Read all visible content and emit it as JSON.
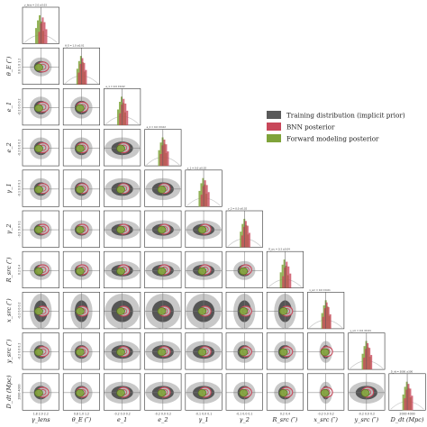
{
  "chart_data": {
    "type": "corner",
    "parameters": [
      "γ_lens",
      "θ_E (″)",
      "e_1",
      "e_2",
      "γ_1",
      "γ_2",
      "R_src (″)",
      "x_src (″)",
      "y_src (″)",
      "D_dt (Mpc)"
    ],
    "legend": [
      {
        "label": "Training distribution (implicit prior)",
        "color": "#5a5a5a"
      },
      {
        "label": "BNN posterior",
        "color": "#c8475a"
      },
      {
        "label": "Forward modeling posterior",
        "color": "#7fa33a"
      }
    ],
    "colors": {
      "prior_dark": "#555555",
      "prior_light": "#c8c8c8",
      "bnn": "#c8475a",
      "fm": "#7fa33a",
      "truth": "#555555"
    },
    "diag_titles": [
      "γ_lens = 2.0 ±0.03",
      "θ_E = 1.0 ±0.01",
      "e_1 = 0.0 ±0.02",
      "e_2 = 0.0 ±0.02",
      "γ_1 = 0.0 ±0.02",
      "γ_2 = 0.0 ±0.02",
      "R_src = 0.3 ±0.04",
      "x_src = 0.0 ±0.01",
      "y_src = 0.0 ±0.01",
      "D_dt = 3000 ±300"
    ],
    "tick_labels": [
      "1.8 2.0 2.2",
      "0.8 1.0 1.2",
      "-0.2 0.0 0.2",
      "-0.2 0.0 0.2",
      "-0.1 0.0 0.1",
      "-0.1 0.0 0.1",
      "0.2 0.4",
      "-0.2 0.0 0.2",
      "-0.2 0.0 0.2",
      "2000 4000"
    ],
    "truth": [
      2.0,
      1.0,
      0.0,
      0.0,
      0.0,
      0.0,
      0.3,
      0.0,
      0.0,
      3000
    ],
    "posterior_mean": {
      "bnn": [
        2.02,
        1.0,
        0.01,
        0.01,
        0.005,
        0.005,
        0.31,
        0.0,
        0.005,
        3050
      ],
      "fm": [
        1.98,
        0.99,
        -0.01,
        -0.005,
        -0.005,
        0.0,
        0.29,
        0.0,
        -0.005,
        2950
      ]
    },
    "prior_shape": [
      "narrow",
      "narrow",
      "wide",
      "wide",
      "wide",
      "narrow",
      "narrow",
      "tall",
      "wide",
      "wide"
    ]
  }
}
